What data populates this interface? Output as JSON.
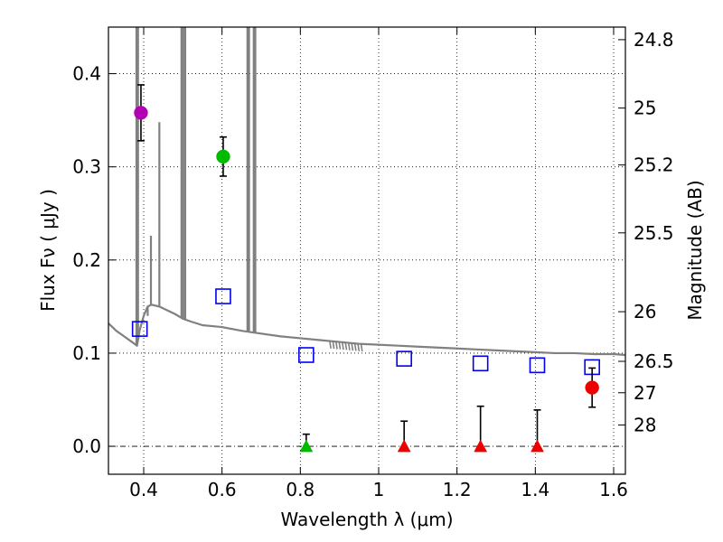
{
  "chart_data": {
    "type": "scatter",
    "xlabel": "Wavelength  λ (μm)",
    "ylabel": "Flux  Fν  ( μJy )",
    "ylabel_right": "Magnitude (AB)",
    "xlim": [
      0.31,
      1.63
    ],
    "ylim": [
      -0.03,
      0.45
    ],
    "grid": true,
    "x_ticks": [
      {
        "value": 0.4,
        "label": "0.4"
      },
      {
        "value": 0.6,
        "label": "0.6"
      },
      {
        "value": 0.8,
        "label": "0.8"
      },
      {
        "value": 1.0,
        "label": "1"
      },
      {
        "value": 1.2,
        "label": "1.2"
      },
      {
        "value": 1.4,
        "label": "1.4"
      },
      {
        "value": 1.6,
        "label": "1.6"
      }
    ],
    "y_ticks": [
      {
        "value": 0.0,
        "label": "0.0"
      },
      {
        "value": 0.1,
        "label": "0.1"
      },
      {
        "value": 0.2,
        "label": "0.2"
      },
      {
        "value": 0.3,
        "label": "0.3"
      },
      {
        "value": 0.4,
        "label": "0.4"
      }
    ],
    "mag_ticks": [
      {
        "flux": 0.4365,
        "label": "24.8"
      },
      {
        "flux": 0.3631,
        "label": "25"
      },
      {
        "flux": 0.302,
        "label": "25.2"
      },
      {
        "flux": 0.2291,
        "label": "25.5"
      },
      {
        "flux": 0.1445,
        "label": "26"
      },
      {
        "flux": 0.0912,
        "label": "26.5"
      },
      {
        "flux": 0.0575,
        "label": "27"
      },
      {
        "flux": 0.0229,
        "label": "28"
      }
    ],
    "detections": [
      {
        "x": 0.393,
        "y": 0.358,
        "err": 0.03,
        "color": "#b300b3"
      },
      {
        "x": 0.603,
        "y": 0.311,
        "err": 0.021,
        "color": "#00bb00"
      },
      {
        "x": 1.545,
        "y": 0.063,
        "err": 0.021,
        "color": "#ee0000"
      }
    ],
    "upper_limits": [
      {
        "x": 0.815,
        "y": 0.0,
        "top": 0.013,
        "color": "#00bb00"
      },
      {
        "x": 1.065,
        "y": 0.0,
        "top": 0.027,
        "color": "#ee0000"
      },
      {
        "x": 1.26,
        "y": 0.0,
        "top": 0.043,
        "color": "#ee0000"
      },
      {
        "x": 1.405,
        "y": 0.0,
        "top": 0.039,
        "color": "#ee0000"
      }
    ],
    "model_photometry": {
      "color": "#0000ee",
      "points": [
        {
          "x": 0.39,
          "y": 0.126
        },
        {
          "x": 0.603,
          "y": 0.161
        },
        {
          "x": 0.815,
          "y": 0.098
        },
        {
          "x": 1.065,
          "y": 0.094
        },
        {
          "x": 1.26,
          "y": 0.089
        },
        {
          "x": 1.405,
          "y": 0.087
        },
        {
          "x": 1.545,
          "y": 0.085
        }
      ]
    },
    "sed_model": {
      "color": "#808080",
      "continuum": [
        [
          0.31,
          0.132
        ],
        [
          0.33,
          0.124
        ],
        [
          0.35,
          0.118
        ],
        [
          0.37,
          0.112
        ],
        [
          0.383,
          0.108
        ],
        [
          0.39,
          0.125
        ],
        [
          0.4,
          0.14
        ],
        [
          0.41,
          0.15
        ],
        [
          0.42,
          0.152
        ],
        [
          0.44,
          0.15
        ],
        [
          0.46,
          0.146
        ],
        [
          0.48,
          0.142
        ],
        [
          0.5,
          0.137
        ],
        [
          0.52,
          0.134
        ],
        [
          0.55,
          0.13
        ],
        [
          0.6,
          0.128
        ],
        [
          0.65,
          0.124
        ],
        [
          0.7,
          0.121
        ],
        [
          0.75,
          0.118
        ],
        [
          0.8,
          0.116
        ],
        [
          0.85,
          0.114
        ],
        [
          0.9,
          0.112
        ],
        [
          0.95,
          0.11
        ],
        [
          1.0,
          0.109
        ],
        [
          1.05,
          0.108
        ],
        [
          1.1,
          0.107
        ],
        [
          1.15,
          0.106
        ],
        [
          1.2,
          0.105
        ],
        [
          1.25,
          0.104
        ],
        [
          1.3,
          0.103
        ],
        [
          1.35,
          0.102
        ],
        [
          1.4,
          0.101
        ],
        [
          1.45,
          0.1
        ],
        [
          1.5,
          0.1
        ],
        [
          1.55,
          0.099
        ],
        [
          1.6,
          0.099
        ],
        [
          1.63,
          0.098
        ]
      ],
      "lines": [
        {
          "x": 0.3815,
          "peak": 0.5
        },
        {
          "x": 0.3855,
          "peak": 0.5
        },
        {
          "x": 0.4102,
          "peak": 0.14
        },
        {
          "x": 0.4185,
          "peak": 0.226
        },
        {
          "x": 0.44,
          "peak": 0.348
        },
        {
          "x": 0.4965,
          "peak": 0.5
        },
        {
          "x": 0.501,
          "peak": 0.5
        },
        {
          "x": 0.506,
          "peak": 0.5
        },
        {
          "x": 0.665,
          "peak": 0.5
        },
        {
          "x": 0.669,
          "peak": 0.5
        },
        {
          "x": 0.681,
          "peak": 0.5
        },
        {
          "x": 0.685,
          "peak": 0.5
        }
      ]
    }
  }
}
